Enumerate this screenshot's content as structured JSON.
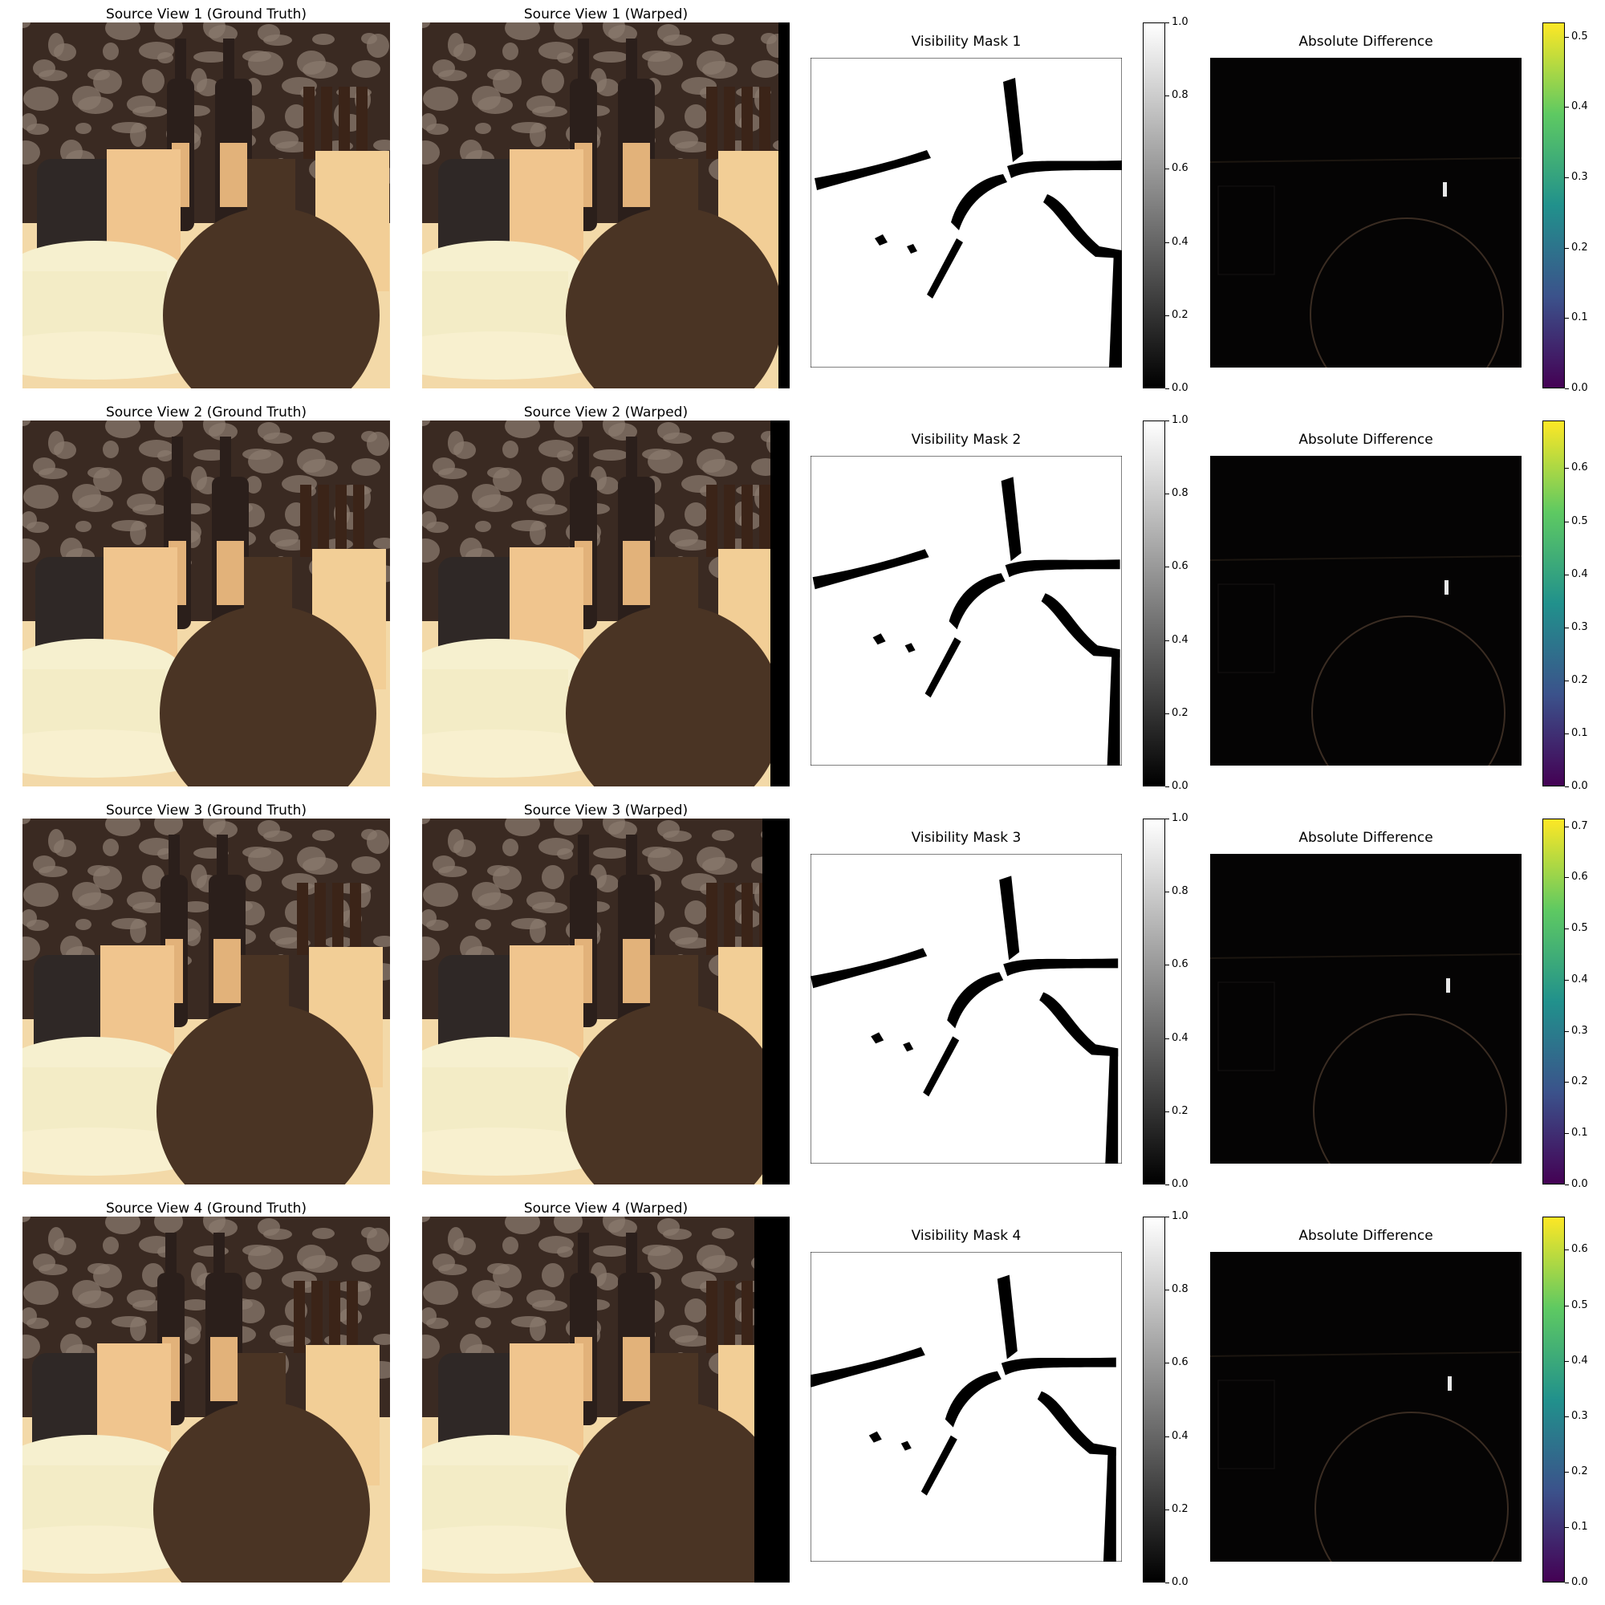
{
  "rows": [
    {
      "gt_title": "Source View 1 (Ground Truth)",
      "warped_title": "Source View 1 (Warped)",
      "mask_title": "Visibility Mask 1",
      "diff_title": "Absolute Difference",
      "mask_ticks": [
        "0.0",
        "0.2",
        "0.4",
        "0.6",
        "0.8",
        "1.0"
      ],
      "diff_ticks": [
        "0.0",
        "0.1",
        "0.2",
        "0.3",
        "0.4",
        "0.5"
      ],
      "diff_max": 0.52
    },
    {
      "gt_title": "Source View 2 (Ground Truth)",
      "warped_title": "Source View 2 (Warped)",
      "mask_title": "Visibility Mask 2",
      "diff_title": "Absolute Difference",
      "mask_ticks": [
        "0.0",
        "0.2",
        "0.4",
        "0.6",
        "0.8",
        "1.0"
      ],
      "diff_ticks": [
        "0.0",
        "0.1",
        "0.2",
        "0.3",
        "0.4",
        "0.5",
        "0.6"
      ],
      "diff_max": 0.69
    },
    {
      "gt_title": "Source View 3 (Ground Truth)",
      "warped_title": "Source View 3 (Warped)",
      "mask_title": "Visibility Mask 3",
      "diff_title": "Absolute Difference",
      "mask_ticks": [
        "0.0",
        "0.2",
        "0.4",
        "0.6",
        "0.8",
        "1.0"
      ],
      "diff_ticks": [
        "0.0",
        "0.1",
        "0.2",
        "0.3",
        "0.4",
        "0.5",
        "0.6",
        "0.7"
      ],
      "diff_max": 0.715
    },
    {
      "gt_title": "Source View 4 (Ground Truth)",
      "warped_title": "Source View 4 (Warped)",
      "mask_title": "Visibility Mask 4",
      "diff_title": "Absolute Difference",
      "mask_ticks": [
        "0.0",
        "0.2",
        "0.4",
        "0.6",
        "0.8",
        "1.0"
      ],
      "diff_ticks": [
        "0.0",
        "0.1",
        "0.2",
        "0.3",
        "0.4",
        "0.5",
        "0.6"
      ],
      "diff_max": 0.66
    }
  ],
  "colors": {
    "viridis": [
      "#440154",
      "#3b528b",
      "#21918c",
      "#5ec962",
      "#fde725"
    ],
    "table": "#f3d9a8",
    "wall": "#3a2a22",
    "pot": "#4a3424"
  }
}
